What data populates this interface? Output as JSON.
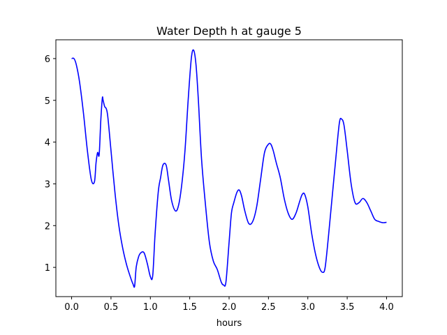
{
  "chart_data": {
    "type": "line",
    "title": "Water Depth h at gauge 5",
    "xlabel": "hours",
    "ylabel": "",
    "xlim": [
      -0.2,
      4.2
    ],
    "ylim": [
      0.3,
      6.45
    ],
    "xticks": [
      0.0,
      0.5,
      1.0,
      1.5,
      2.0,
      2.5,
      3.0,
      3.5,
      4.0
    ],
    "xtick_labels": [
      "0.0",
      "0.5",
      "1.0",
      "1.5",
      "2.0",
      "2.5",
      "3.0",
      "3.5",
      "4.0"
    ],
    "yticks": [
      1,
      2,
      3,
      4,
      5,
      6
    ],
    "ytick_labels": [
      "1",
      "2",
      "3",
      "4",
      "5",
      "6"
    ],
    "grid": false,
    "series": [
      {
        "color": "#0000ff",
        "x": [
          0.0,
          0.03,
          0.06,
          0.1,
          0.15,
          0.2,
          0.25,
          0.29,
          0.31,
          0.33,
          0.35,
          0.37,
          0.39,
          0.4,
          0.42,
          0.44,
          0.46,
          0.5,
          0.55,
          0.6,
          0.65,
          0.7,
          0.75,
          0.78,
          0.8,
          0.82,
          0.85,
          0.88,
          0.92,
          0.96,
          1.0,
          1.03,
          1.06,
          1.1,
          1.13,
          1.16,
          1.2,
          1.23,
          1.27,
          1.32,
          1.36,
          1.4,
          1.44,
          1.48,
          1.52,
          1.55,
          1.58,
          1.61,
          1.65,
          1.7,
          1.75,
          1.8,
          1.85,
          1.9,
          1.93,
          1.96,
          2.0,
          2.03,
          2.06,
          2.1,
          2.13,
          2.16,
          2.2,
          2.25,
          2.3,
          2.35,
          2.4,
          2.45,
          2.5,
          2.53,
          2.56,
          2.6,
          2.65,
          2.7,
          2.75,
          2.8,
          2.85,
          2.9,
          2.93,
          2.96,
          3.0,
          3.05,
          3.1,
          3.15,
          3.19,
          3.22,
          3.26,
          3.3,
          3.35,
          3.4,
          3.43,
          3.46,
          3.5,
          3.55,
          3.6,
          3.65,
          3.7,
          3.75,
          3.8,
          3.85,
          3.9,
          3.95,
          4.0
        ],
        "y": [
          6.0,
          6.0,
          5.85,
          5.45,
          4.7,
          3.8,
          3.1,
          3.05,
          3.5,
          3.75,
          3.7,
          4.5,
          5.05,
          5.0,
          4.85,
          4.8,
          4.6,
          3.8,
          2.8,
          2.0,
          1.45,
          1.05,
          0.75,
          0.6,
          0.55,
          1.0,
          1.25,
          1.35,
          1.35,
          1.1,
          0.78,
          0.8,
          1.8,
          2.8,
          3.15,
          3.45,
          3.45,
          3.1,
          2.6,
          2.35,
          2.5,
          3.0,
          3.8,
          5.0,
          6.0,
          6.2,
          5.85,
          5.0,
          3.6,
          2.5,
          1.6,
          1.15,
          0.95,
          0.65,
          0.58,
          0.65,
          1.6,
          2.3,
          2.55,
          2.8,
          2.85,
          2.7,
          2.35,
          2.05,
          2.1,
          2.45,
          3.1,
          3.75,
          3.95,
          3.95,
          3.8,
          3.5,
          3.15,
          2.65,
          2.3,
          2.15,
          2.3,
          2.6,
          2.75,
          2.75,
          2.45,
          1.8,
          1.3,
          0.98,
          0.88,
          1.0,
          1.7,
          2.5,
          3.5,
          4.45,
          4.55,
          4.4,
          3.8,
          3.0,
          2.55,
          2.55,
          2.65,
          2.55,
          2.35,
          2.15,
          2.1,
          2.07,
          2.08
        ]
      }
    ]
  }
}
